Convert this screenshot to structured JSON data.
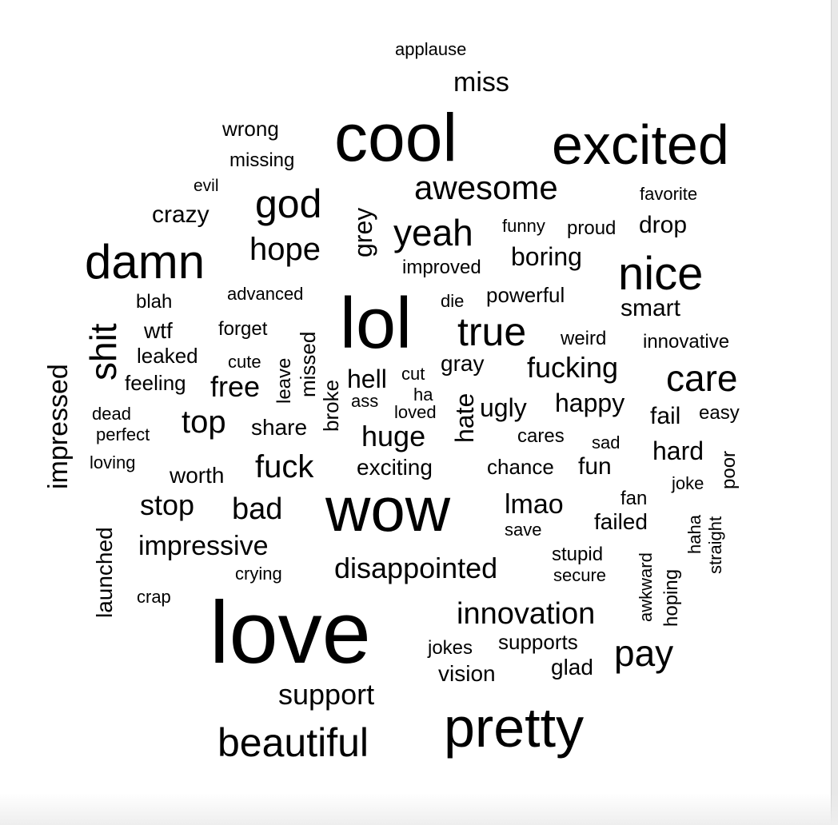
{
  "text_color": "#000000",
  "background_color": "#ffffff",
  "words": [
    {
      "text": "applause",
      "size": 22
    },
    {
      "text": "miss",
      "size": 34
    },
    {
      "text": "wrong",
      "size": 26
    },
    {
      "text": "cool",
      "size": 84
    },
    {
      "text": "excited",
      "size": 70
    },
    {
      "text": "missing",
      "size": 24
    },
    {
      "text": "evil",
      "size": 21
    },
    {
      "text": "awesome",
      "size": 42
    },
    {
      "text": "favorite",
      "size": 22
    },
    {
      "text": "god",
      "size": 50
    },
    {
      "text": "crazy",
      "size": 30
    },
    {
      "text": "grey",
      "size": 32
    },
    {
      "text": "yeah",
      "size": 46
    },
    {
      "text": "funny",
      "size": 22
    },
    {
      "text": "proud",
      "size": 24
    },
    {
      "text": "drop",
      "size": 30
    },
    {
      "text": "damn",
      "size": 60
    },
    {
      "text": "hope",
      "size": 40
    },
    {
      "text": "improved",
      "size": 24
    },
    {
      "text": "boring",
      "size": 32
    },
    {
      "text": "nice",
      "size": 58
    },
    {
      "text": "blah",
      "size": 24
    },
    {
      "text": "advanced",
      "size": 22
    },
    {
      "text": "lol",
      "size": 90
    },
    {
      "text": "die",
      "size": 22
    },
    {
      "text": "powerful",
      "size": 26
    },
    {
      "text": "smart",
      "size": 30
    },
    {
      "text": "shit",
      "size": 46
    },
    {
      "text": "wtf",
      "size": 28
    },
    {
      "text": "forget",
      "size": 24
    },
    {
      "text": "missed",
      "size": 26
    },
    {
      "text": "true",
      "size": 50
    },
    {
      "text": "weird",
      "size": 24
    },
    {
      "text": "innovative",
      "size": 24
    },
    {
      "text": "impressed",
      "size": 34
    },
    {
      "text": "leaked",
      "size": 26
    },
    {
      "text": "cute",
      "size": 22
    },
    {
      "text": "leave",
      "size": 24
    },
    {
      "text": "gray",
      "size": 28
    },
    {
      "text": "fucking",
      "size": 36
    },
    {
      "text": "care",
      "size": 46
    },
    {
      "text": "feeling",
      "size": 26
    },
    {
      "text": "free",
      "size": 36
    },
    {
      "text": "broke",
      "size": 26
    },
    {
      "text": "hell",
      "size": 32
    },
    {
      "text": "cut",
      "size": 22
    },
    {
      "text": "ha",
      "size": 22
    },
    {
      "text": "ass",
      "size": 22
    },
    {
      "text": "hate",
      "size": 32
    },
    {
      "text": "ugly",
      "size": 32
    },
    {
      "text": "happy",
      "size": 32
    },
    {
      "text": "loved",
      "size": 22
    },
    {
      "text": "fail",
      "size": 30
    },
    {
      "text": "easy",
      "size": 24
    },
    {
      "text": "dead",
      "size": 22
    },
    {
      "text": "top",
      "size": 40
    },
    {
      "text": "share",
      "size": 28
    },
    {
      "text": "huge",
      "size": 36
    },
    {
      "text": "perfect",
      "size": 22
    },
    {
      "text": "cares",
      "size": 24
    },
    {
      "text": "sad",
      "size": 22
    },
    {
      "text": "hard",
      "size": 32
    },
    {
      "text": "poor",
      "size": 24
    },
    {
      "text": "loving",
      "size": 22
    },
    {
      "text": "fuck",
      "size": 40
    },
    {
      "text": "exciting",
      "size": 28
    },
    {
      "text": "chance",
      "size": 26
    },
    {
      "text": "fun",
      "size": 30
    },
    {
      "text": "worth",
      "size": 28
    },
    {
      "text": "joke",
      "size": 22
    },
    {
      "text": "fan",
      "size": 24
    },
    {
      "text": "stop",
      "size": 36
    },
    {
      "text": "bad",
      "size": 38
    },
    {
      "text": "wow",
      "size": 78
    },
    {
      "text": "lmao",
      "size": 34
    },
    {
      "text": "haha",
      "size": 22
    },
    {
      "text": "launched",
      "size": 28
    },
    {
      "text": "failed",
      "size": 28
    },
    {
      "text": "save",
      "size": 22
    },
    {
      "text": "straight",
      "size": 22
    },
    {
      "text": "impressive",
      "size": 34
    },
    {
      "text": "stupid",
      "size": 24
    },
    {
      "text": "awkward",
      "size": 22
    },
    {
      "text": "crying",
      "size": 22
    },
    {
      "text": "disappointed",
      "size": 36
    },
    {
      "text": "secure",
      "size": 22
    },
    {
      "text": "hoping",
      "size": 24
    },
    {
      "text": "crap",
      "size": 22
    },
    {
      "text": "innovation",
      "size": 38
    },
    {
      "text": "love",
      "size": 110
    },
    {
      "text": "supports",
      "size": 26
    },
    {
      "text": "jokes",
      "size": 24
    },
    {
      "text": "pay",
      "size": 46
    },
    {
      "text": "glad",
      "size": 28
    },
    {
      "text": "vision",
      "size": 28
    },
    {
      "text": "support",
      "size": 36
    },
    {
      "text": "pretty",
      "size": 70
    },
    {
      "text": "beautiful",
      "size": 50
    }
  ]
}
